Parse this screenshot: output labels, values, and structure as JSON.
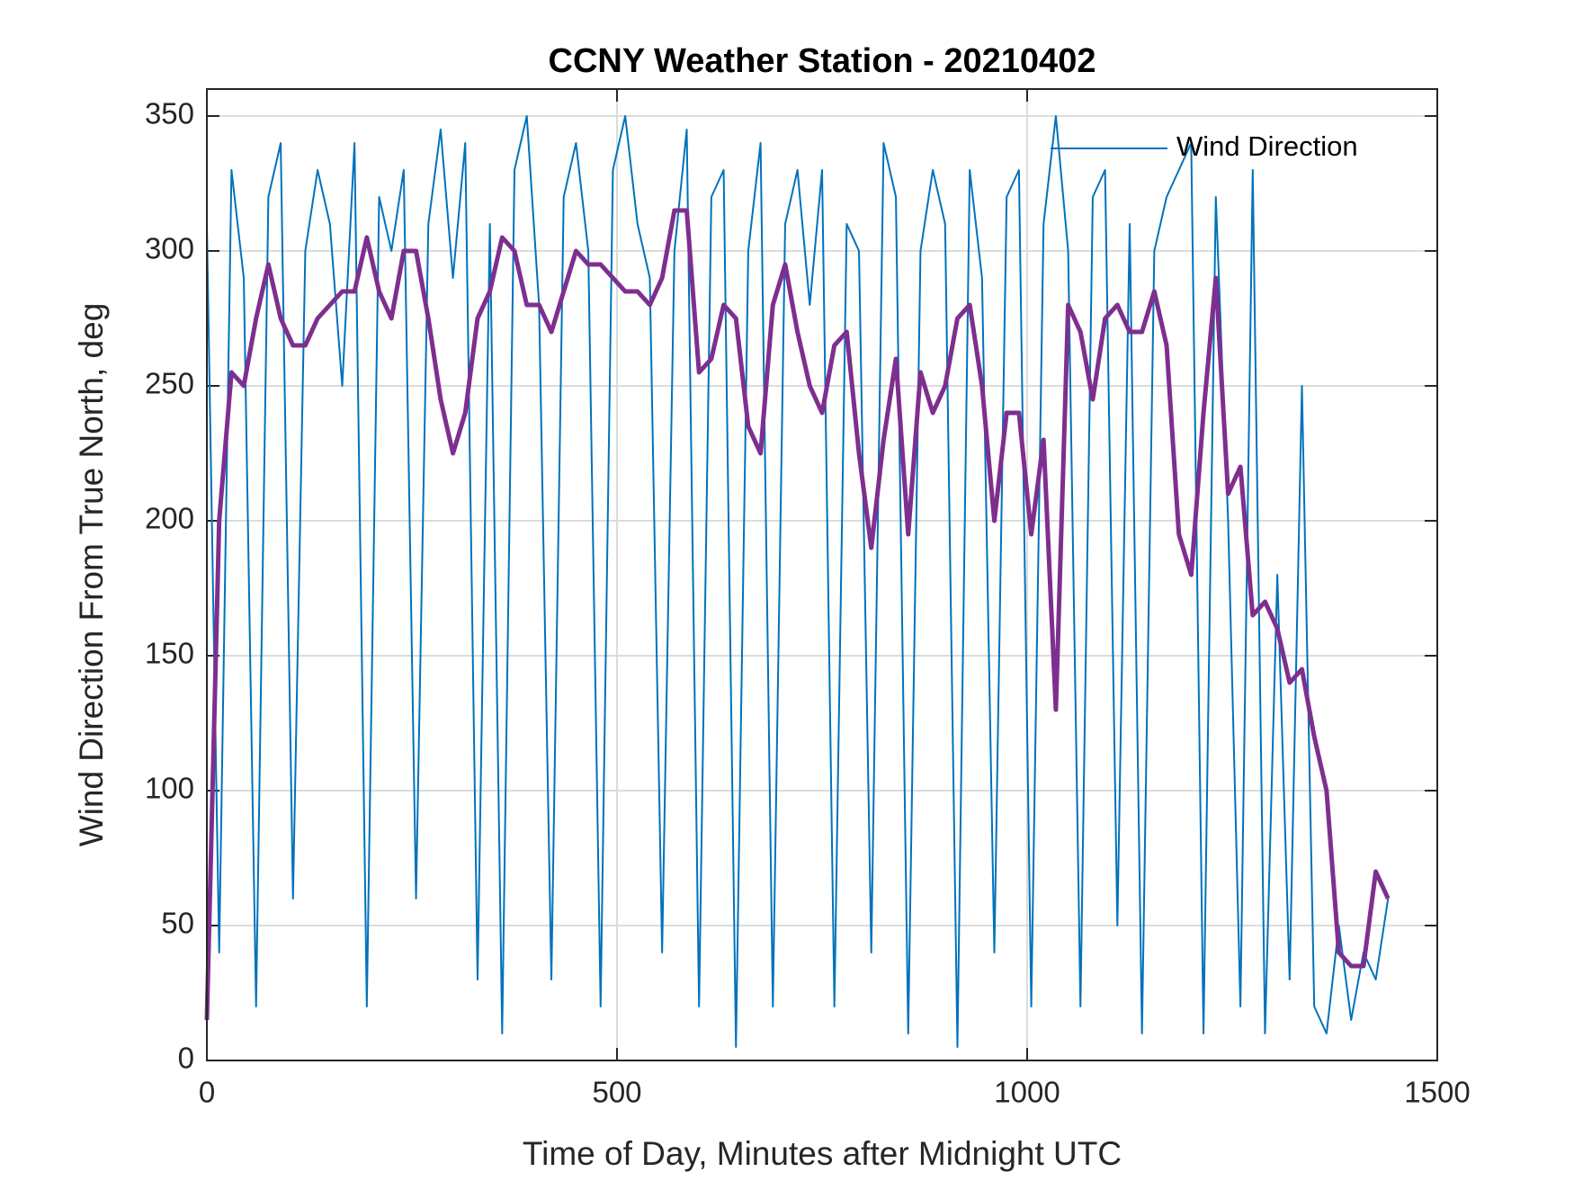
{
  "chart_data": {
    "type": "line",
    "title": "CCNY Weather Station - 20210402",
    "xlabel": "Time of Day, Minutes after Midnight UTC",
    "ylabel": "Wind Direction From True North, deg",
    "x": [
      0,
      15,
      30,
      45,
      60,
      75,
      90,
      105,
      120,
      135,
      150,
      165,
      180,
      195,
      210,
      225,
      240,
      255,
      270,
      285,
      300,
      315,
      330,
      345,
      360,
      375,
      390,
      405,
      420,
      435,
      450,
      465,
      480,
      495,
      510,
      525,
      540,
      555,
      570,
      585,
      600,
      615,
      630,
      645,
      660,
      675,
      690,
      705,
      720,
      735,
      750,
      765,
      780,
      795,
      810,
      825,
      840,
      855,
      870,
      885,
      900,
      915,
      930,
      945,
      960,
      975,
      990,
      1005,
      1020,
      1035,
      1050,
      1065,
      1080,
      1095,
      1110,
      1125,
      1140,
      1155,
      1170,
      1185,
      1200,
      1215,
      1230,
      1245,
      1260,
      1275,
      1290,
      1305,
      1320,
      1335,
      1350,
      1365,
      1380,
      1395,
      1410,
      1425,
      1440
    ],
    "series": [
      {
        "name": "Wind Direction",
        "color": "#0072bd",
        "values": [
          310,
          40,
          330,
          290,
          20,
          320,
          340,
          60,
          300,
          330,
          310,
          250,
          340,
          20,
          320,
          300,
          330,
          60,
          310,
          345,
          290,
          340,
          30,
          310,
          10,
          330,
          350,
          280,
          30,
          320,
          340,
          300,
          20,
          330,
          350,
          310,
          290,
          40,
          300,
          345,
          20,
          320,
          330,
          5,
          300,
          340,
          20,
          310,
          330,
          280,
          330,
          20,
          310,
          300,
          40,
          340,
          320,
          10,
          300,
          330,
          310,
          5,
          330,
          290,
          40,
          320,
          330,
          20,
          310,
          350,
          300,
          20,
          320,
          330,
          50,
          310,
          10,
          300,
          320,
          330,
          340,
          10,
          320,
          200,
          20,
          330,
          10,
          180,
          30,
          250,
          20,
          10,
          50,
          15,
          40,
          30,
          60
        ]
      },
      {
        "color": "#7e2f8e",
        "values": [
          15,
          200,
          255,
          250,
          275,
          295,
          275,
          265,
          265,
          275,
          280,
          285,
          285,
          305,
          285,
          275,
          300,
          300,
          275,
          245,
          225,
          240,
          275,
          285,
          305,
          300,
          280,
          280,
          270,
          285,
          300,
          295,
          295,
          290,
          285,
          285,
          280,
          290,
          315,
          315,
          255,
          260,
          280,
          275,
          235,
          225,
          280,
          295,
          270,
          250,
          240,
          265,
          270,
          225,
          190,
          230,
          260,
          195,
          255,
          240,
          250,
          275,
          280,
          250,
          200,
          240,
          240,
          195,
          230,
          130,
          280,
          270,
          245,
          275,
          280,
          270,
          270,
          285,
          265,
          195,
          180,
          240,
          290,
          210,
          220,
          165,
          170,
          160,
          140,
          145,
          120,
          100,
          40,
          35,
          35,
          70,
          60
        ]
      }
    ],
    "xlim": [
      0,
      1500
    ],
    "xticks": [
      0,
      500,
      1000,
      1500
    ],
    "ylim": [
      0,
      360
    ],
    "yticks": [
      0,
      50,
      100,
      150,
      200,
      250,
      300,
      350
    ],
    "grid": true,
    "legend": "northeast"
  }
}
